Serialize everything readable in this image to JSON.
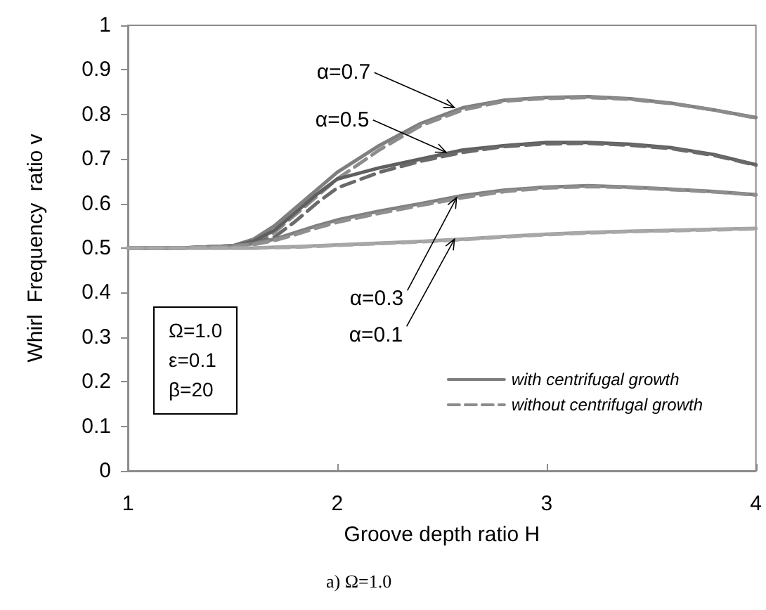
{
  "chart_data": {
    "type": "line",
    "xlabel": "Groove depth ratio H",
    "ylabel": "Whirl  Frequency  ratio v",
    "x": [
      1,
      1.25,
      1.5,
      1.6,
      1.7,
      1.8,
      1.9,
      2,
      2.2,
      2.4,
      2.6,
      2.8,
      3,
      3.2,
      3.4,
      3.6,
      3.8,
      4
    ],
    "series": [
      {
        "name": "with centrifugal growth",
        "color": "#7f7f7f",
        "line_style": "solid",
        "values": [
          0.5,
          0.5,
          0.505,
          0.52,
          0.55,
          0.59,
          0.63,
          0.67,
          0.73,
          0.78,
          0.815,
          0.832,
          0.838,
          0.84,
          0.835,
          0.825,
          0.81,
          0.793
        ]
      },
      {
        "name": "without centrifugal growth",
        "color": "#8c8c8c",
        "line_style": "dashed",
        "values": [
          0.5,
          0.5,
          0.503,
          0.512,
          0.535,
          0.575,
          0.615,
          0.655,
          0.72,
          0.775,
          0.81,
          0.83,
          0.836,
          0.838,
          0.834,
          0.824,
          0.81,
          0.792
        ]
      },
      {
        "color": "#5f5f5f",
        "line_style": "solid",
        "values": [
          0.5,
          0.5,
          0.505,
          0.515,
          0.54,
          0.58,
          0.62,
          0.655,
          0.68,
          0.7,
          0.72,
          0.73,
          0.737,
          0.737,
          0.733,
          0.725,
          0.71,
          0.687
        ]
      },
      {
        "color": "#6a6a6a",
        "line_style": "dashed",
        "values": [
          0.5,
          0.5,
          0.503,
          0.51,
          0.525,
          0.56,
          0.6,
          0.635,
          0.67,
          0.695,
          0.715,
          0.728,
          0.734,
          0.735,
          0.731,
          0.723,
          0.708,
          0.686
        ]
      },
      {
        "color": "#808080",
        "line_style": "solid",
        "values": [
          0.5,
          0.5,
          0.505,
          0.51,
          0.52,
          0.535,
          0.55,
          0.563,
          0.583,
          0.6,
          0.618,
          0.63,
          0.637,
          0.64,
          0.637,
          0.632,
          0.627,
          0.62
        ]
      },
      {
        "color": "#8f8f8f",
        "line_style": "dashed",
        "values": [
          0.5,
          0.5,
          0.504,
          0.508,
          0.517,
          0.53,
          0.545,
          0.558,
          0.578,
          0.596,
          0.613,
          0.627,
          0.635,
          0.638,
          0.636,
          0.631,
          0.626,
          0.619
        ]
      },
      {
        "color": "#a0a0a0",
        "line_style": "solid",
        "values": [
          0.5,
          0.5,
          0.5,
          0.5,
          0.502,
          0.503,
          0.505,
          0.507,
          0.511,
          0.515,
          0.52,
          0.526,
          0.531,
          0.535,
          0.538,
          0.54,
          0.542,
          0.544
        ]
      },
      {
        "color": "#a8a8a8",
        "line_style": "dashed",
        "values": [
          0.5,
          0.5,
          0.5,
          0.5,
          0.501,
          0.502,
          0.504,
          0.506,
          0.51,
          0.514,
          0.519,
          0.525,
          0.53,
          0.534,
          0.537,
          0.539,
          0.541,
          0.543
        ]
      }
    ],
    "xlim": [
      1,
      4
    ],
    "xticks": [
      1,
      2,
      3,
      4
    ],
    "ylim": [
      0,
      1
    ],
    "yticks": [
      0,
      0.1,
      0.2,
      0.3,
      0.4,
      0.5,
      0.6,
      0.7,
      0.8,
      0.9,
      1
    ],
    "grid": false,
    "legend": "bottom right",
    "marker": "none",
    "annotations": [
      {
        "text": "α=0.7",
        "x": 2.56,
        "y": 0.815
      },
      {
        "text": "α=0.5",
        "x": 2.52,
        "y": 0.715
      },
      {
        "text": "α=0.3",
        "x": 2.57,
        "y": 0.613
      },
      {
        "text": "α=0.1",
        "x": 2.56,
        "y": 0.52
      },
      "Ω=1.0\nε=0.1\nβ=20",
      "a) Ω=1.0"
    ]
  }
}
